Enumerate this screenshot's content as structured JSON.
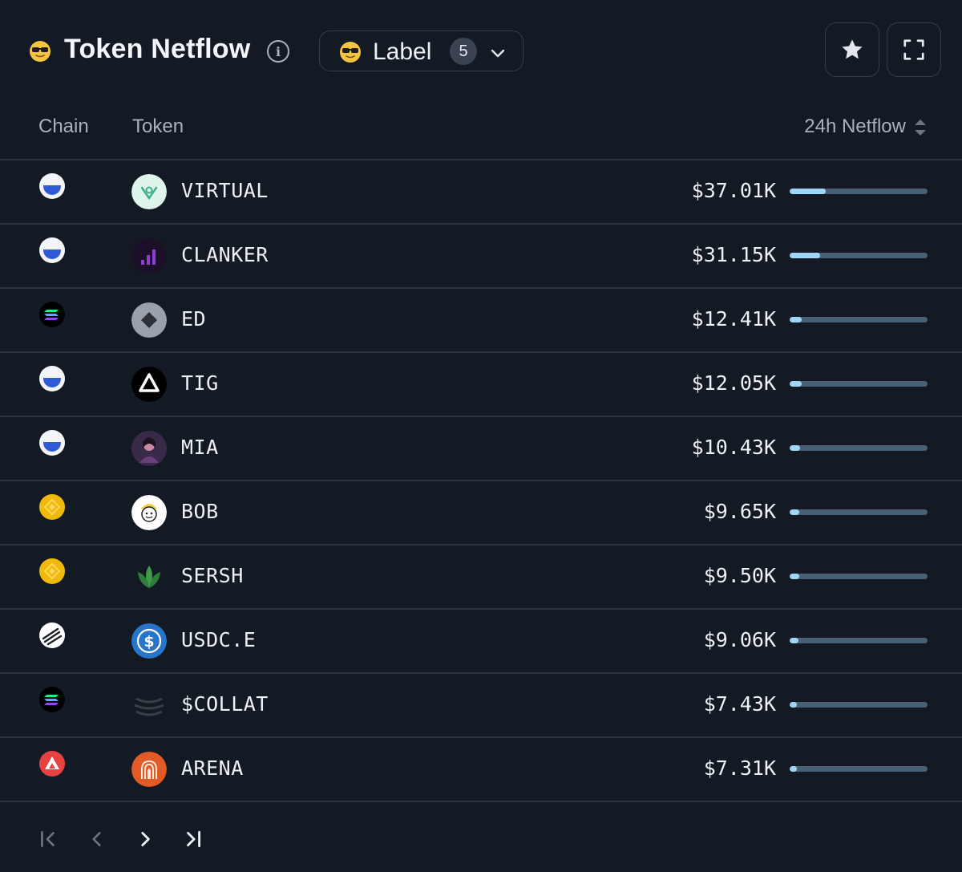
{
  "header": {
    "title": "Token Netflow",
    "title_icon": "sunglasses-emoji-icon",
    "info_icon": "info-icon",
    "label_button": {
      "text": "Label",
      "count": "5",
      "icon": "sunglasses-emoji-icon"
    },
    "favorite_icon": "star-icon",
    "expand_icon": "expand-icon"
  },
  "table": {
    "columns": {
      "chain": "Chain",
      "token": "Token",
      "netflow": "24h Netflow"
    },
    "rows": [
      {
        "chain": "base",
        "token": "VIRTUAL",
        "amount": "$37.01K",
        "share": 0.26
      },
      {
        "chain": "base",
        "token": "CLANKER",
        "amount": "$31.15K",
        "share": 0.22
      },
      {
        "chain": "solana",
        "token": "ED",
        "amount": "$12.41K",
        "share": 0.09
      },
      {
        "chain": "base",
        "token": "TIG",
        "amount": "$12.05K",
        "share": 0.085
      },
      {
        "chain": "base",
        "token": "MIA",
        "amount": "$10.43K",
        "share": 0.075
      },
      {
        "chain": "bnb",
        "token": "BOB",
        "amount": "$9.65K",
        "share": 0.07
      },
      {
        "chain": "bnb",
        "token": "SERSH",
        "amount": "$9.50K",
        "share": 0.068
      },
      {
        "chain": "arbitrum",
        "token": "USDC.E",
        "amount": "$9.06K",
        "share": 0.065
      },
      {
        "chain": "solana",
        "token": "$COLLAT",
        "amount": "$7.43K",
        "share": 0.055
      },
      {
        "chain": "avalanche",
        "token": "ARENA",
        "amount": "$7.31K",
        "share": 0.053
      }
    ]
  },
  "pagination": {
    "first_icon": "first-page-icon",
    "prev_icon": "chevron-left-icon",
    "next_icon": "chevron-right-icon",
    "last_icon": "last-page-icon"
  },
  "colors": {
    "background": "#141a24",
    "bar_track": "#4a6074",
    "bar_fill": "#9fd6f5",
    "base_blue": "#2f5bd7",
    "bnb_yellow": "#f0b90b",
    "avalanche_red": "#e84142"
  }
}
